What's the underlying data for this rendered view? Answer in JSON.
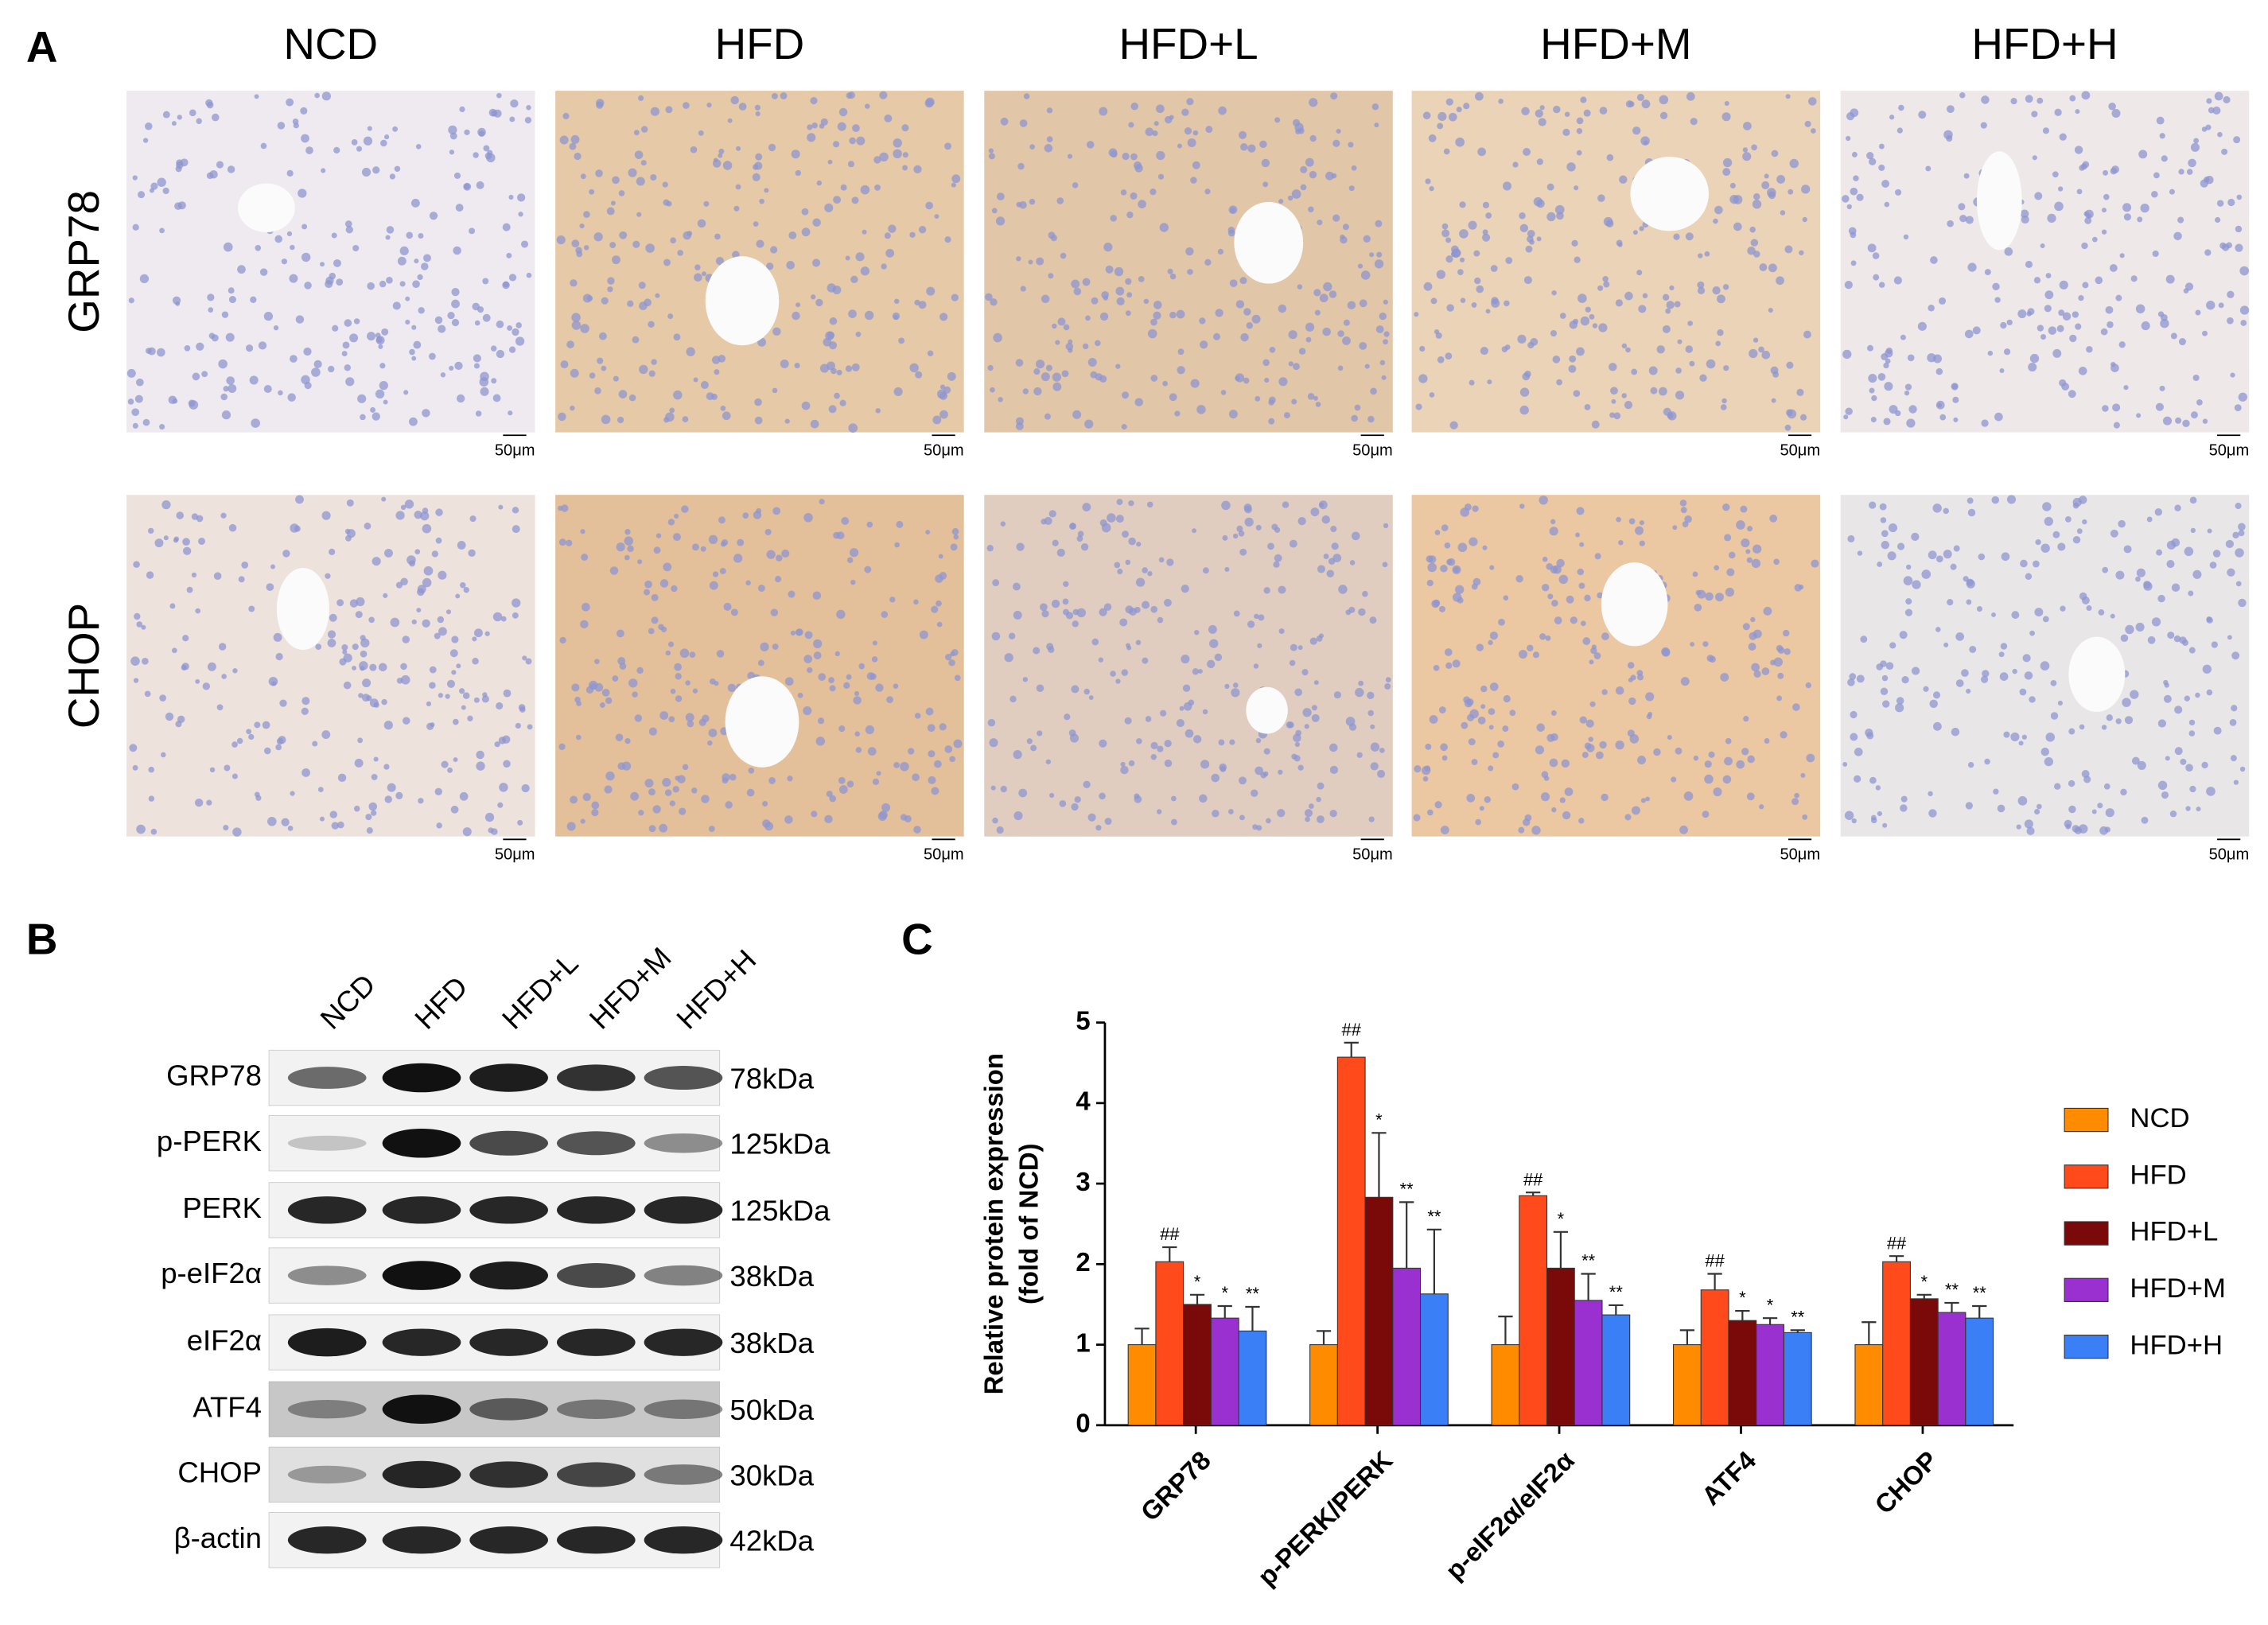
{
  "panel_a": {
    "label": "A",
    "columns": [
      "NCD",
      "HFD",
      "HFD+L",
      "HFD+M",
      "HFD+H"
    ],
    "rows": [
      "GRP78",
      "CHOP"
    ],
    "scale_bar": "50μm"
  },
  "panel_b": {
    "label": "B",
    "lanes": [
      "NCD",
      "HFD",
      "HFD+L",
      "HFD+M",
      "HFD+H"
    ],
    "proteins": [
      "GRP78",
      "p-PERK",
      "PERK",
      "p-eIF2α",
      "eIF2α",
      "ATF4",
      "CHOP",
      "β-actin"
    ],
    "sizes": [
      "78kDa",
      "125kDa",
      "125kDa",
      "38kDa",
      "38kDa",
      "50kDa",
      "30kDa",
      "42kDa"
    ]
  },
  "panel_c": {
    "label": "C"
  },
  "chart_data": {
    "type": "bar",
    "ylabel": [
      "Relative protein expression",
      "(fold of NCD)"
    ],
    "categories": [
      "GRP78",
      "p-PERK/PERK",
      "p-eIF2α/eIF2α",
      "ATF4",
      "CHOP"
    ],
    "ylim": [
      0,
      5
    ],
    "yticks": [
      0,
      1,
      2,
      3,
      4,
      5
    ],
    "legend": "right",
    "series": [
      {
        "name": "NCD",
        "color": "#ff8c00",
        "values": [
          1.0,
          1.0,
          1.0,
          1.0,
          1.0
        ],
        "errors": [
          0.2,
          0.17,
          0.35,
          0.18,
          0.28
        ]
      },
      {
        "name": "HFD",
        "color": "#ff4a1c",
        "values": [
          2.03,
          4.57,
          2.85,
          1.68,
          2.03
        ],
        "errors": [
          0.18,
          0.18,
          0.04,
          0.2,
          0.07
        ],
        "significance": [
          "##",
          "##",
          "##",
          "##",
          "##"
        ]
      },
      {
        "name": "HFD+L",
        "color": "#7a0a0a",
        "values": [
          1.5,
          2.83,
          1.95,
          1.3,
          1.57
        ],
        "errors": [
          0.12,
          0.8,
          0.45,
          0.12,
          0.05
        ],
        "significance": [
          "*",
          "*",
          "*",
          "*",
          "*"
        ]
      },
      {
        "name": "HFD+M",
        "color": "#9b30d0",
        "values": [
          1.33,
          1.95,
          1.55,
          1.25,
          1.4
        ],
        "errors": [
          0.15,
          0.82,
          0.33,
          0.08,
          0.12
        ],
        "significance": [
          "*",
          "**",
          "**",
          "*",
          "**"
        ]
      },
      {
        "name": "HFD+H",
        "color": "#3a7ff5",
        "values": [
          1.17,
          1.63,
          1.37,
          1.15,
          1.33
        ],
        "errors": [
          0.3,
          0.8,
          0.12,
          0.03,
          0.15
        ],
        "significance": [
          "**",
          "**",
          "**",
          "**",
          "**"
        ]
      }
    ]
  }
}
